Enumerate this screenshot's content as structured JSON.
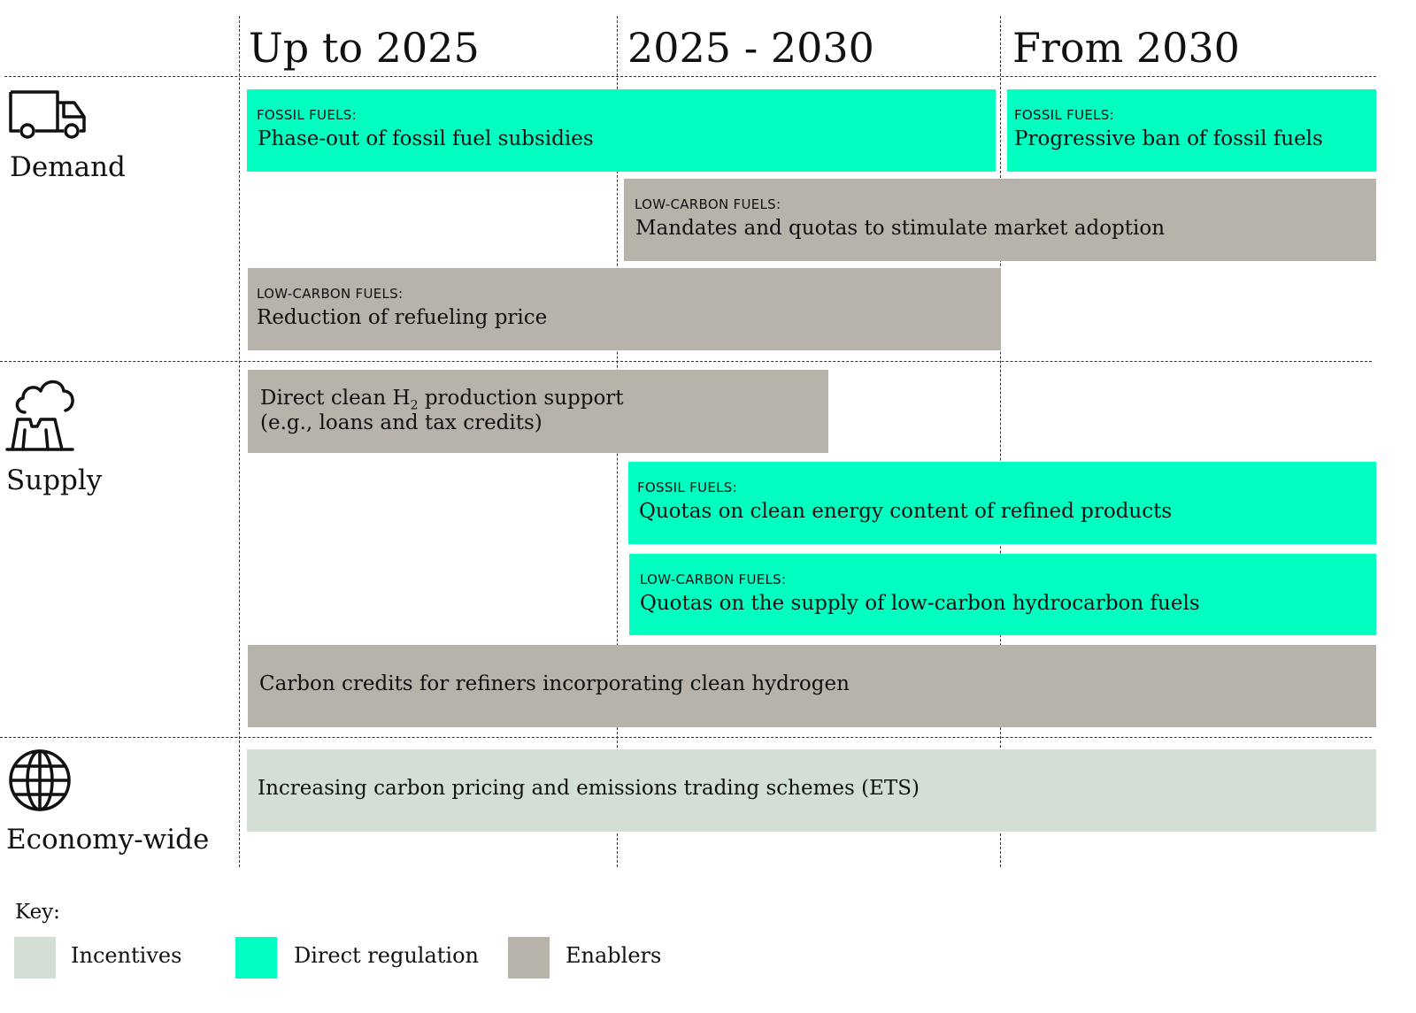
{
  "columns": [
    "Up to 2025",
    "2025 - 2030",
    "From 2030"
  ],
  "rows": {
    "demand": "Demand",
    "supply": "Supply",
    "economy": "Economy-wide"
  },
  "icons": {
    "demand": "truck-icon",
    "supply": "factory-cloud-icon",
    "economy": "globe-icon"
  },
  "bars": {
    "fossil_subsidies": {
      "tag": "FOSSIL FUELS:",
      "text": "Phase-out of fossil fuel subsidies",
      "type": "Direct regulation"
    },
    "fossil_ban": {
      "tag": "FOSSIL FUELS:",
      "text": "Progressive ban of fossil fuels",
      "type": "Direct regulation"
    },
    "mandates": {
      "tag": "LOW-CARBON FUELS:",
      "text": "Mandates and quotas to stimulate market adoption",
      "type": "Enablers"
    },
    "refuel_price": {
      "tag": "LOW-CARBON FUELS:",
      "text": "Reduction of refueling price",
      "type": "Enablers"
    },
    "h2_support": {
      "line1_pre": "Direct clean H",
      "line1_sub": "2",
      "line1_post": " production support",
      "line2": "(e.g., loans and tax credits)",
      "type": "Enablers"
    },
    "clean_content": {
      "tag": "FOSSIL FUELS:",
      "text": "Quotas on clean energy content of refined products",
      "type": "Direct regulation"
    },
    "lowcarbon_supply": {
      "tag": "LOW-CARBON FUELS:",
      "text": "Quotas on the supply of low-carbon hydrocarbon fuels",
      "type": "Direct regulation"
    },
    "carbon_credits": {
      "text": "Carbon credits for refiners incorporating clean hydrogen",
      "type": "Enablers"
    },
    "carbon_pricing": {
      "text": "Increasing carbon pricing and emissions trading schemes (ETS)",
      "type": "Incentives"
    }
  },
  "key": {
    "title": "Key:",
    "items": [
      {
        "label": "Incentives",
        "color": "#d3dfd5"
      },
      {
        "label": "Direct regulation",
        "color": "#00ffc0"
      },
      {
        "label": "Enablers",
        "color": "#b7b3ab"
      }
    ]
  }
}
